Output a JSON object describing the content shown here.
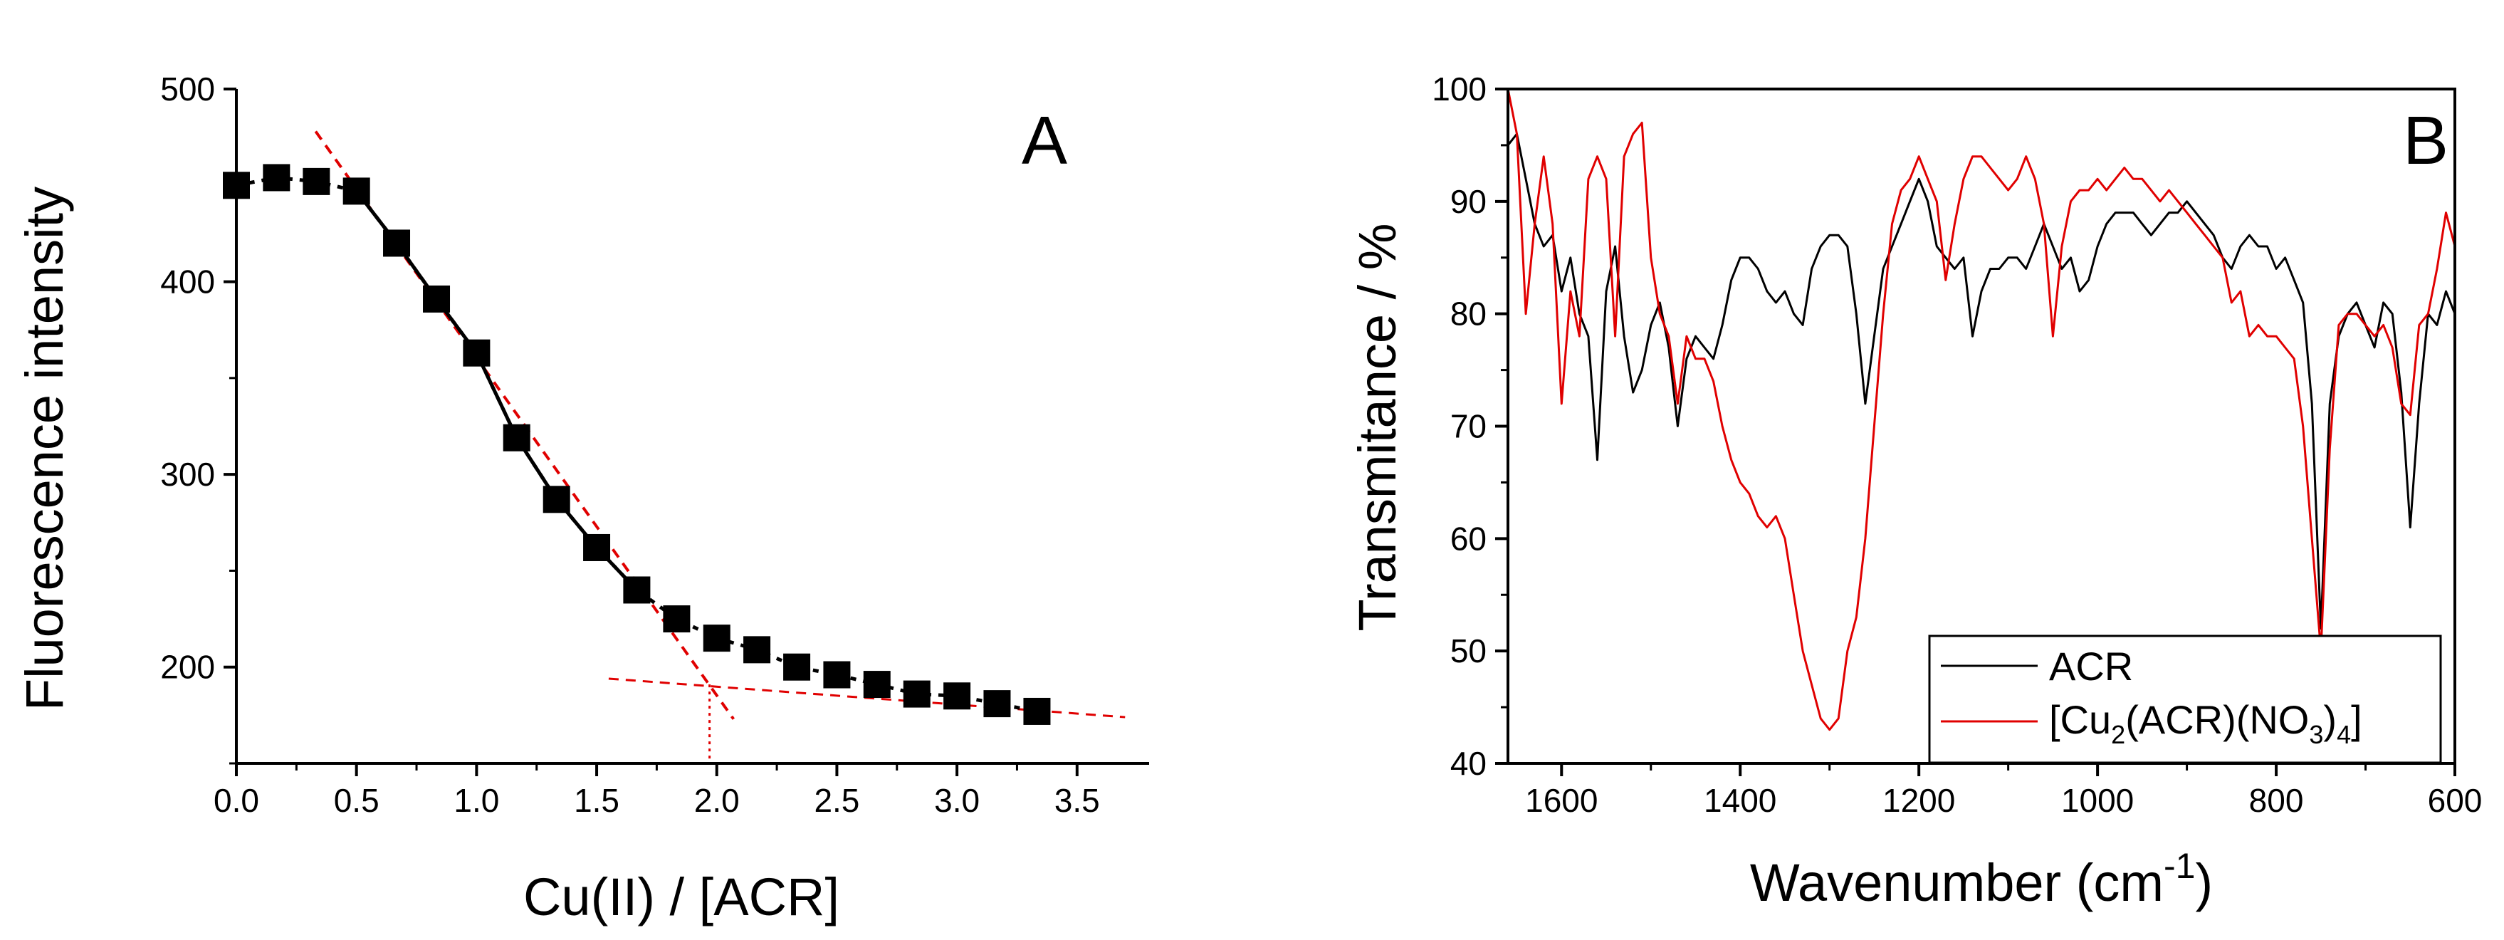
{
  "chart_data": [
    {
      "type": "scatter",
      "panel_label": "A",
      "xlabel": "Cu(II) / [ACR]",
      "ylabel": "Fluorescence intensity",
      "xlim": [
        0.0,
        3.8
      ],
      "ylim": [
        150,
        500
      ],
      "xticks": [
        0.0,
        0.5,
        1.0,
        1.5,
        2.0,
        2.5,
        3.0,
        3.5
      ],
      "xtick_labels": [
        "0.0",
        "0.5",
        "1.0",
        "1.5",
        "2.0",
        "2.5",
        "3.0",
        "3.5"
      ],
      "yticks": [
        200,
        300,
        400,
        500
      ],
      "ytick_labels": [
        "200",
        "300",
        "400",
        "500"
      ],
      "series": [
        {
          "name": "Fluorescence intensity",
          "marker": "square",
          "color": "#000000",
          "x": [
            0.0,
            0.167,
            0.333,
            0.5,
            0.667,
            0.833,
            1.0,
            1.167,
            1.333,
            1.5,
            1.667,
            1.833,
            2.0,
            2.167,
            2.333,
            2.5,
            2.667,
            2.833,
            3.0,
            3.167,
            3.333
          ],
          "y": [
            450,
            454,
            452,
            447,
            420,
            391,
            363,
            319,
            287,
            262,
            240,
            225,
            215,
            209,
            200,
            196,
            191,
            186,
            185,
            181,
            177
          ]
        }
      ],
      "fit_lines": [
        {
          "name": "steep-fit",
          "color": "#e00000",
          "x": [
            0.33,
            2.07
          ],
          "y": [
            478,
            173
          ]
        },
        {
          "name": "shallow-fit",
          "color": "#e00000",
          "x": [
            1.55,
            3.7
          ],
          "y": [
            194,
            174
          ]
        },
        {
          "name": "intersection-drop",
          "color": "#e00000",
          "x": [
            1.97,
            1.97
          ],
          "y": [
            191,
            150
          ]
        }
      ]
    },
    {
      "type": "line",
      "panel_label": "B",
      "xlabel": "Wavenumber (cm",
      "xlabel_superscript": "-1",
      "xlabel_suffix": ")",
      "ylabel": "Transmitance / %",
      "xlim": [
        1660,
        600
      ],
      "ylim": [
        40,
        100
      ],
      "xticks": [
        1600,
        1400,
        1200,
        1000,
        800,
        600
      ],
      "xtick_labels": [
        "1600",
        "1400",
        "1200",
        "1000",
        "800",
        "600"
      ],
      "yticks": [
        40,
        50,
        60,
        70,
        80,
        90,
        100
      ],
      "ytick_labels": [
        "40",
        "50",
        "60",
        "70",
        "80",
        "90",
        "100"
      ],
      "legend": {
        "placement": "bottom-right",
        "entries": [
          "ACR",
          "[Cu",
          "2",
          "(ACR)(NO",
          "3",
          ")",
          "4",
          "]"
        ]
      },
      "series": [
        {
          "name": "ACR",
          "color": "#000000",
          "x": [
            1660,
            1650,
            1640,
            1630,
            1620,
            1610,
            1600,
            1590,
            1580,
            1570,
            1560,
            1550,
            1540,
            1530,
            1520,
            1510,
            1500,
            1490,
            1480,
            1470,
            1460,
            1450,
            1440,
            1430,
            1420,
            1410,
            1400,
            1390,
            1380,
            1370,
            1360,
            1350,
            1340,
            1330,
            1320,
            1310,
            1300,
            1290,
            1280,
            1270,
            1260,
            1250,
            1240,
            1230,
            1220,
            1210,
            1200,
            1190,
            1180,
            1170,
            1160,
            1150,
            1140,
            1130,
            1120,
            1110,
            1100,
            1090,
            1080,
            1070,
            1060,
            1050,
            1040,
            1030,
            1020,
            1010,
            1000,
            990,
            980,
            970,
            960,
            950,
            940,
            930,
            920,
            910,
            900,
            890,
            880,
            870,
            860,
            850,
            840,
            830,
            820,
            810,
            800,
            790,
            780,
            770,
            760,
            750,
            740,
            730,
            720,
            710,
            700,
            690,
            680,
            670,
            660,
            650,
            640,
            630,
            620,
            610,
            600
          ],
          "y": [
            95,
            96,
            92,
            88,
            86,
            87,
            82,
            85,
            80,
            78,
            67,
            82,
            86,
            78,
            73,
            75,
            79,
            81,
            77,
            70,
            76,
            78,
            77,
            76,
            79,
            83,
            85,
            85,
            84,
            82,
            81,
            82,
            80,
            79,
            84,
            86,
            87,
            87,
            86,
            80,
            72,
            78,
            84,
            86,
            88,
            90,
            92,
            90,
            86,
            85,
            84,
            85,
            78,
            82,
            84,
            84,
            85,
            85,
            84,
            86,
            88,
            86,
            84,
            85,
            82,
            83,
            86,
            88,
            89,
            89,
            89,
            88,
            87,
            88,
            89,
            89,
            90,
            89,
            88,
            87,
            85,
            84,
            86,
            87,
            86,
            86,
            84,
            85,
            83,
            81,
            72,
            52,
            72,
            78,
            80,
            81,
            79,
            77,
            81,
            80,
            73,
            61,
            72,
            80,
            79,
            82,
            80
          ]
        },
        {
          "name": "[Cu2(ACR)(NO3)4]",
          "color": "#e00000",
          "x": [
            1660,
            1650,
            1640,
            1630,
            1620,
            1610,
            1600,
            1590,
            1580,
            1570,
            1560,
            1550,
            1540,
            1530,
            1520,
            1510,
            1500,
            1490,
            1480,
            1470,
            1460,
            1450,
            1440,
            1430,
            1420,
            1410,
            1400,
            1390,
            1380,
            1370,
            1360,
            1350,
            1340,
            1330,
            1320,
            1310,
            1300,
            1290,
            1280,
            1270,
            1260,
            1250,
            1240,
            1230,
            1220,
            1210,
            1200,
            1190,
            1180,
            1170,
            1160,
            1150,
            1140,
            1130,
            1120,
            1110,
            1100,
            1090,
            1080,
            1070,
            1060,
            1050,
            1040,
            1030,
            1020,
            1010,
            1000,
            990,
            980,
            970,
            960,
            950,
            940,
            930,
            920,
            910,
            900,
            890,
            880,
            870,
            860,
            850,
            840,
            830,
            820,
            810,
            800,
            790,
            780,
            770,
            760,
            750,
            740,
            730,
            720,
            710,
            700,
            690,
            680,
            670,
            660,
            650,
            640,
            630,
            620,
            610,
            600
          ],
          "y": [
            100,
            96,
            80,
            88,
            94,
            88,
            72,
            82,
            78,
            92,
            94,
            92,
            78,
            94,
            96,
            97,
            85,
            80,
            78,
            72,
            78,
            76,
            76,
            74,
            70,
            67,
            65,
            64,
            62,
            61,
            62,
            60,
            55,
            50,
            47,
            44,
            43,
            44,
            50,
            53,
            60,
            70,
            80,
            88,
            91,
            92,
            94,
            92,
            90,
            83,
            88,
            92,
            94,
            94,
            93,
            92,
            91,
            92,
            94,
            92,
            88,
            78,
            86,
            90,
            91,
            91,
            92,
            91,
            92,
            93,
            92,
            92,
            91,
            90,
            91,
            90,
            89,
            88,
            87,
            86,
            85,
            81,
            82,
            78,
            79,
            78,
            78,
            77,
            76,
            70,
            60,
            50,
            68,
            79,
            80,
            80,
            79,
            78,
            79,
            77,
            72,
            71,
            79,
            80,
            84,
            89,
            86
          ]
        }
      ]
    }
  ]
}
